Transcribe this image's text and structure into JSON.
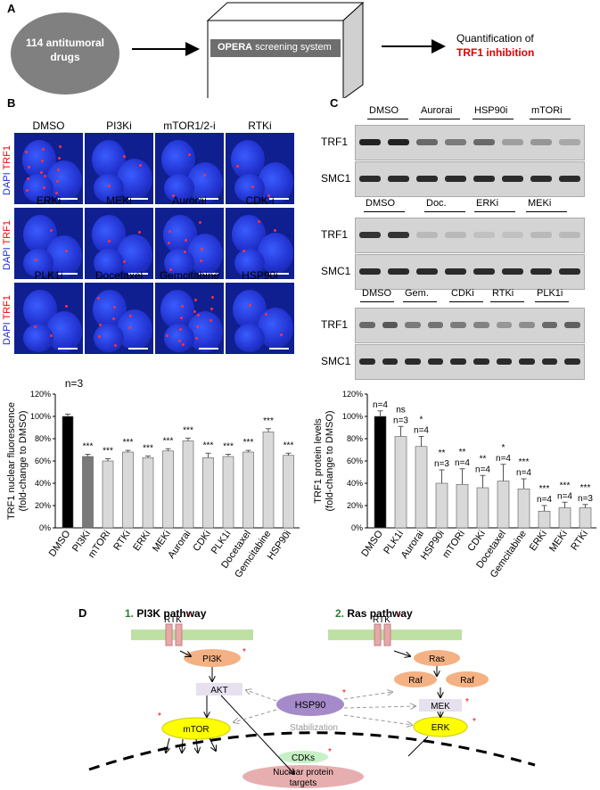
{
  "panelA": {
    "label": "A",
    "drugs": "114 antitumoral drugs",
    "opera_bold": "OPERA",
    "opera_rest": " screening system",
    "quant_line1": "Quantification of",
    "quant_line2": "TRF1 inhibition"
  },
  "panelB": {
    "label": "B",
    "stain_dapi": "DAPI",
    "stain_trf1": "TRF1",
    "cells": [
      "DMSO",
      "PI3Ki",
      "mTOR1/2-i",
      "RTKi",
      "ERKi",
      "MEKi",
      "Aurorai",
      "CDK-i",
      "PLK1i",
      "Docetaxel",
      "Gemcitabine",
      "HSP90i"
    ]
  },
  "panelC": {
    "label": "C",
    "blot1_groups": [
      "DMSO",
      "Aurorai",
      "HSP90i",
      "mTORi"
    ],
    "blot2_groups": [
      "DMSO",
      "Doc.",
      "ERKi",
      "MEKi"
    ],
    "blot3_groups": [
      "DMSO",
      "Gem.",
      "CDKi",
      "RTKi",
      "PLK1i"
    ],
    "trf1": "TRF1",
    "smc1": "SMC1"
  },
  "panelD": {
    "label": "D",
    "pi3k_num": "1.",
    "pi3k_title": " PI3K pathway",
    "ras_num": "2.",
    "ras_title": " Ras pathway",
    "rtk1": "RTK",
    "rtk2": "RTK",
    "star": "*",
    "pi3k": "PI3K",
    "akt": "AKT",
    "mtor": "mTOR",
    "hsp90": "HSP90",
    "stabilization": "Stabilization",
    "ras": "Ras",
    "raf1": "Raf",
    "raf2": "Raf",
    "mek": "MEK",
    "erk": "ERK",
    "cdks": "CDKs",
    "nuclear1": "Nuclear protein",
    "nuclear2": "targets"
  },
  "chart_data": [
    {
      "type": "bar",
      "title": "n=3",
      "ylabel": "TRF1 nuclear fluorescence (fold-change to DMSO)",
      "ylim": [
        0,
        120
      ],
      "ytick_suffix": "%",
      "categories": [
        "DMSO",
        "PI3Ki",
        "mTORi",
        "RTKi",
        "ERKi",
        "MEKi",
        "Aurorai",
        "CDKi",
        "PLK1i",
        "Docetaxel",
        "Gemcitabine",
        "HSP90i"
      ],
      "values": [
        100,
        64,
        60,
        68,
        63,
        69,
        78,
        63,
        64,
        68,
        86,
        65
      ],
      "errors": [
        2,
        2,
        2,
        1.5,
        1.5,
        2,
        2.5,
        4,
        2,
        1.5,
        3,
        2
      ],
      "significance": [
        "",
        "***",
        "***",
        "***",
        "***",
        "***",
        "***",
        "***",
        "***",
        "***",
        "***",
        "***"
      ],
      "colors": [
        "#000000",
        "#7a7a7a",
        "#d9d9d9",
        "#d9d9d9",
        "#d9d9d9",
        "#d9d9d9",
        "#d9d9d9",
        "#d9d9d9",
        "#d9d9d9",
        "#d9d9d9",
        "#d9d9d9",
        "#d9d9d9"
      ]
    },
    {
      "type": "bar",
      "ylabel": "TRF1 protein levels (fold-change to DMSO)",
      "ylim": [
        0,
        120
      ],
      "ytick_suffix": "%",
      "categories": [
        "DMSO",
        "PLK1i",
        "Aurorai",
        "HSP90i",
        "mTORi",
        "CDKi",
        "Docetaxel",
        "Gemcitabine",
        "ERKi",
        "MEKi",
        "RTKi"
      ],
      "values": [
        100,
        82,
        73,
        40,
        39,
        36,
        42,
        35,
        15,
        18,
        18
      ],
      "errors": [
        5,
        9,
        9,
        12,
        14,
        11,
        15,
        9,
        5,
        5,
        3
      ],
      "significance": [
        "",
        "ns",
        "*",
        "**",
        "**",
        "**",
        "*",
        "***",
        "***",
        "***",
        "***"
      ],
      "n_labels": [
        "n=4",
        "n=3",
        "n=4",
        "n=3",
        "n=4",
        "n=4",
        "n=4",
        "n=4",
        "n=4",
        "n=4",
        "n=3"
      ],
      "colors": [
        "#000000",
        "#d9d9d9",
        "#d9d9d9",
        "#d9d9d9",
        "#d9d9d9",
        "#d9d9d9",
        "#d9d9d9",
        "#d9d9d9",
        "#d9d9d9",
        "#d9d9d9",
        "#d9d9d9"
      ]
    }
  ]
}
